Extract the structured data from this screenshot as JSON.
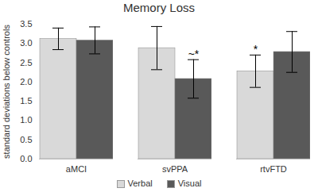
{
  "chart_data": {
    "type": "bar",
    "title": "Memory Loss",
    "y_label": "standard deviations below controls",
    "categories": [
      "aMCI",
      "svPPA",
      "rtvFTD"
    ],
    "series": [
      {
        "name": "Verbal",
        "color": "#d9d9d9",
        "values": [
          3.12,
          2.88,
          2.28
        ],
        "errors": [
          0.28,
          0.56,
          0.42
        ]
      },
      {
        "name": "Visual",
        "color": "#595959",
        "values": [
          3.08,
          2.08,
          2.78
        ],
        "errors": [
          0.35,
          0.5,
          0.53
        ]
      }
    ],
    "annotations": [
      {
        "text": "~*",
        "category": "svPPA",
        "series": "Visual"
      },
      {
        "text": "*",
        "category": "rtvFTD",
        "series": "Verbal"
      }
    ],
    "ylim": [
      0,
      3.5
    ],
    "yticks": [
      0,
      0.5,
      1,
      1.5,
      2,
      2.5,
      3,
      3.5
    ],
    "grid": false,
    "legend": "bottom"
  }
}
